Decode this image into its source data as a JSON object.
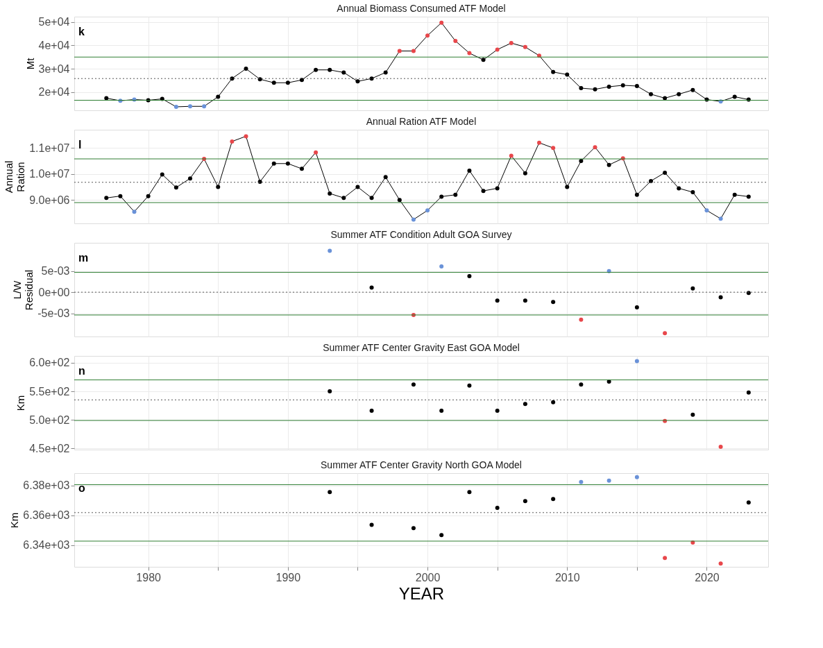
{
  "chart_data": [
    {
      "type": "line",
      "title": "Annual Biomass Consumed ATF Model",
      "ylabel": "Mt",
      "marker": "circle",
      "line_style": "solid",
      "grid": true,
      "tick_labels": "y",
      "annotations": [
        "k"
      ],
      "x": [
        1977,
        1978,
        1979,
        1980,
        1981,
        1982,
        1983,
        1984,
        1985,
        1986,
        1987,
        1988,
        1989,
        1990,
        1991,
        1992,
        1993,
        1994,
        1995,
        1996,
        1997,
        1998,
        1999,
        2000,
        2001,
        2002,
        2003,
        2004,
        2005,
        2006,
        2007,
        2008,
        2009,
        2010,
        2011,
        2012,
        2013,
        2014,
        2015,
        2016,
        2017,
        2018,
        2019,
        2020,
        2021,
        2022,
        2023
      ],
      "series": [
        {
          "color": "#000000",
          "values": [
            17400,
            16300,
            16800,
            16500,
            17100,
            13700,
            13900,
            13900,
            18000,
            25800,
            30000,
            25500,
            24000,
            24000,
            25200,
            29500,
            29500,
            28400,
            24600,
            25800,
            28400,
            37600,
            37600,
            44200,
            49700,
            41900,
            36700,
            33800,
            38200,
            41000,
            39300,
            35600,
            28600,
            27500,
            21700,
            21200,
            22300,
            22900,
            22600,
            19100,
            17400,
            19100,
            20900,
            16800,
            16000,
            18000,
            16800
          ],
          "colors": [
            "#000000",
            "#6a92d8",
            "#6a92d8",
            "#000000",
            "#000000",
            "#6a92d8",
            "#6a92d8",
            "#6a92d8",
            "#000000",
            "#000000",
            "#000000",
            "#000000",
            "#000000",
            "#000000",
            "#000000",
            "#000000",
            "#000000",
            "#000000",
            "#000000",
            "#000000",
            "#000000",
            "#e8474b",
            "#e8474b",
            "#e8474b",
            "#e8474b",
            "#e8474b",
            "#e8474b",
            "#000000",
            "#e8474b",
            "#e8474b",
            "#e8474b",
            "#e8474b",
            "#000000",
            "#000000",
            "#000000",
            "#000000",
            "#000000",
            "#000000",
            "#000000",
            "#000000",
            "#000000",
            "#000000",
            "#000000",
            "#000000",
            "#6a92d8",
            "#000000",
            "#000000"
          ]
        }
      ],
      "xlim": [
        1974.7,
        2024.4
      ],
      "xticks": [
        1980,
        {
          "value": 1985,
          "label": null
        },
        1990,
        {
          "value": 1995,
          "label": null
        },
        2000,
        {
          "value": 2005,
          "label": null
        },
        2010,
        {
          "value": 2015,
          "label": null
        },
        2020
      ],
      "ylim": [
        12200,
        52300
      ],
      "yticks": [
        {
          "value": 20000,
          "label": "2e+04"
        },
        {
          "value": 30000,
          "label": "3e+04"
        },
        {
          "value": 40000,
          "label": "4e+04"
        },
        {
          "value": 50000,
          "label": "5e+04"
        }
      ],
      "ref_lines": [
        {
          "axis": "y",
          "value": 35000,
          "label": null,
          "color": "#2e7d32",
          "line_style": "solid"
        },
        {
          "axis": "y",
          "value": 25800,
          "label": null,
          "color": "#555555",
          "line_style": "dotted"
        },
        {
          "axis": "y",
          "value": 16500,
          "label": null,
          "color": "#2e7d32",
          "line_style": "solid"
        }
      ]
    },
    {
      "type": "line",
      "title": "Annual Ration ATF Model",
      "ylabel": "Annual\nRation",
      "marker": "circle",
      "line_style": "solid",
      "grid": true,
      "tick_labels": "y",
      "annotations": [
        "l"
      ],
      "x": [
        1977,
        1978,
        1979,
        1980,
        1981,
        1982,
        1983,
        1984,
        1985,
        1986,
        1987,
        1988,
        1989,
        1990,
        1991,
        1992,
        1993,
        1994,
        1995,
        1996,
        1997,
        1998,
        1999,
        2000,
        2001,
        2002,
        2003,
        2004,
        2005,
        2006,
        2007,
        2008,
        2009,
        2010,
        2011,
        2012,
        2013,
        2014,
        2015,
        2016,
        2017,
        2018,
        2019,
        2020,
        2021,
        2022,
        2023
      ],
      "series": [
        {
          "color": "#000000",
          "values": [
            9080000,
            9150000,
            8550000,
            9150000,
            9980000,
            9480000,
            9830000,
            10580000,
            9500000,
            11250000,
            11450000,
            9700000,
            10400000,
            10400000,
            10200000,
            10830000,
            9250000,
            9080000,
            9500000,
            9080000,
            9880000,
            9000000,
            8250000,
            8600000,
            9130000,
            9200000,
            10130000,
            9350000,
            9450000,
            10700000,
            10030000,
            11200000,
            11000000,
            9500000,
            10500000,
            11030000,
            10350000,
            10600000,
            9200000,
            9730000,
            10050000,
            9450000,
            9300000,
            8600000,
            8280000,
            9200000,
            9130000
          ],
          "colors": [
            "#000000",
            "#000000",
            "#6a92d8",
            "#000000",
            "#000000",
            "#000000",
            "#000000",
            "#e8474b",
            "#000000",
            "#e8474b",
            "#e8474b",
            "#000000",
            "#000000",
            "#000000",
            "#000000",
            "#e8474b",
            "#000000",
            "#000000",
            "#000000",
            "#000000",
            "#000000",
            "#000000",
            "#6a92d8",
            "#6a92d8",
            "#000000",
            "#000000",
            "#000000",
            "#000000",
            "#000000",
            "#e8474b",
            "#000000",
            "#e8474b",
            "#e8474b",
            "#000000",
            "#000000",
            "#e8474b",
            "#000000",
            "#e8474b",
            "#000000",
            "#000000",
            "#000000",
            "#000000",
            "#000000",
            "#6a92d8",
            "#6a92d8",
            "#000000",
            "#000000"
          ]
        }
      ],
      "xlim": [
        1974.7,
        2024.4
      ],
      "xticks": [
        1980,
        {
          "value": 1985,
          "label": null
        },
        1990,
        {
          "value": 1995,
          "label": null
        },
        2000,
        {
          "value": 2005,
          "label": null
        },
        2010,
        {
          "value": 2015,
          "label": null
        },
        2020
      ],
      "ylim": [
        8100000,
        11700000
      ],
      "yticks": [
        {
          "value": 9000000,
          "label": "9.0e+06"
        },
        {
          "value": 10000000,
          "label": "1.0e+07"
        },
        {
          "value": 11000000,
          "label": "1.1e+07"
        }
      ],
      "ref_lines": [
        {
          "axis": "y",
          "value": 10580000,
          "label": null,
          "color": "#2e7d32",
          "line_style": "solid"
        },
        {
          "axis": "y",
          "value": 9680000,
          "label": null,
          "color": "#555555",
          "line_style": "dotted"
        },
        {
          "axis": "y",
          "value": 8900000,
          "label": null,
          "color": "#2e7d32",
          "line_style": "solid"
        }
      ]
    },
    {
      "type": "scatter",
      "title": "Summer ATF Condition Adult GOA Survey",
      "ylabel": "L/W\nResidual",
      "marker": "circle",
      "grid": true,
      "tick_labels": "y",
      "annotations": [
        "m"
      ],
      "x": [
        1993,
        1996,
        1999,
        2001,
        2003,
        2005,
        2007,
        2009,
        2011,
        2013,
        2015,
        2017,
        2019,
        2021,
        2023
      ],
      "series": [
        {
          "values": [
            0.0098,
            0.0011,
            -0.0054,
            0.0061,
            0.0038,
            -0.002,
            -0.002,
            -0.0023,
            -0.0065,
            0.005,
            -0.0036,
            -0.0097,
            0.0009,
            -0.0012,
            -0.0002
          ],
          "colors": [
            "#6a92d8",
            "#000000",
            "#e8474b",
            "#6a92d8",
            "#000000",
            "#000000",
            "#000000",
            "#000000",
            "#e8474b",
            "#6a92d8",
            "#000000",
            "#e8474b",
            "#000000",
            "#000000",
            "#000000"
          ]
        }
      ],
      "xlim": [
        1974.7,
        2024.4
      ],
      "xticks": [
        1980,
        {
          "value": 1985,
          "label": null
        },
        1990,
        {
          "value": 1995,
          "label": null
        },
        2000,
        {
          "value": 2005,
          "label": null
        },
        2010,
        {
          "value": 2015,
          "label": null
        },
        2020
      ],
      "ylim": [
        -0.0105,
        0.0117
      ],
      "yticks": [
        {
          "value": -0.005,
          "label": "-5e-03"
        },
        {
          "value": 0,
          "label": "0e+00"
        },
        {
          "value": 0.005,
          "label": "5e-03"
        }
      ],
      "ref_lines": [
        {
          "axis": "y",
          "value": 0.0047,
          "label": null,
          "color": "#2e7d32",
          "line_style": "solid"
        },
        {
          "axis": "y",
          "value": 0,
          "label": null,
          "color": "#555555",
          "line_style": "dotted"
        },
        {
          "axis": "y",
          "value": -0.0054,
          "label": null,
          "color": "#2e7d32",
          "line_style": "solid"
        }
      ]
    },
    {
      "type": "scatter",
      "title": "Summer ATF Center Gravity East GOA Model",
      "ylabel": "Km",
      "marker": "circle",
      "grid": true,
      "tick_labels": "y",
      "annotations": [
        "n"
      ],
      "x": [
        1993,
        1996,
        1999,
        2001,
        2003,
        2005,
        2007,
        2009,
        2011,
        2013,
        2015,
        2017,
        2019,
        2021,
        2023
      ],
      "series": [
        {
          "values": [
            550,
            516,
            562,
            516,
            560,
            516,
            528,
            531,
            562,
            567,
            603,
            498,
            509,
            453,
            548
          ],
          "colors": [
            "#000000",
            "#000000",
            "#000000",
            "#000000",
            "#000000",
            "#000000",
            "#000000",
            "#000000",
            "#000000",
            "#000000",
            "#6a92d8",
            "#e8474b",
            "#000000",
            "#e8474b",
            "#000000"
          ]
        }
      ],
      "xlim": [
        1974.7,
        2024.4
      ],
      "xticks": [
        1980,
        {
          "value": 1985,
          "label": null
        },
        1990,
        {
          "value": 1995,
          "label": null
        },
        2000,
        {
          "value": 2005,
          "label": null
        },
        2010,
        {
          "value": 2015,
          "label": null
        },
        2020
      ],
      "ylim": [
        448,
        612
      ],
      "yticks": [
        {
          "value": 450,
          "label": "4.5e+02"
        },
        {
          "value": 500,
          "label": "5.0e+02"
        },
        {
          "value": 550,
          "label": "5.5e+02"
        },
        {
          "value": 600,
          "label": "6.0e+02"
        }
      ],
      "ref_lines": [
        {
          "axis": "y",
          "value": 570,
          "label": null,
          "color": "#2e7d32",
          "line_style": "solid"
        },
        {
          "axis": "y",
          "value": 535,
          "label": null,
          "color": "#555555",
          "line_style": "dotted"
        },
        {
          "axis": "y",
          "value": 499,
          "label": null,
          "color": "#2e7d32",
          "line_style": "solid"
        }
      ]
    },
    {
      "type": "scatter",
      "title": "Summer ATF Center Gravity North GOA Model",
      "ylabel": "Km",
      "xlabel": "YEAR",
      "marker": "circle",
      "grid": true,
      "annotations": [
        "o"
      ],
      "x": [
        1993,
        1996,
        1999,
        2001,
        2003,
        2005,
        2007,
        2009,
        2011,
        2013,
        2015,
        2017,
        2019,
        2021,
        2023
      ],
      "series": [
        {
          "values": [
            6375.5,
            6353.6,
            6351.4,
            6346.8,
            6375.5,
            6365,
            6369.5,
            6370.9,
            6382.3,
            6383.2,
            6385.5,
            6331.4,
            6341.8,
            6327.7,
            6368.6
          ],
          "colors": [
            "#000000",
            "#000000",
            "#000000",
            "#000000",
            "#000000",
            "#000000",
            "#000000",
            "#000000",
            "#6a92d8",
            "#6a92d8",
            "#6a92d8",
            "#e8474b",
            "#e8474b",
            "#e8474b",
            "#000000"
          ]
        }
      ],
      "xlim": [
        1974.7,
        2024.4
      ],
      "xticks": [
        1980,
        {
          "value": 1985,
          "label": null
        },
        1990,
        {
          "value": 1995,
          "label": null
        },
        2000,
        {
          "value": 2005,
          "label": null
        },
        2010,
        {
          "value": 2015,
          "label": null
        },
        2020
      ],
      "ylim": [
        6325.5,
        6388.2
      ],
      "yticks": [
        {
          "value": 6340,
          "label": "6.34e+03"
        },
        {
          "value": 6360,
          "label": "6.36e+03"
        },
        {
          "value": 6380,
          "label": "6.38e+03"
        }
      ],
      "ref_lines": [
        {
          "axis": "y",
          "value": 6380.5,
          "label": null,
          "color": "#2e7d32",
          "line_style": "solid"
        },
        {
          "axis": "y",
          "value": 6361.8,
          "label": null,
          "color": "#555555",
          "line_style": "dotted"
        },
        {
          "axis": "y",
          "value": 6342.7,
          "label": null,
          "color": "#2e7d32",
          "line_style": "solid"
        }
      ]
    }
  ]
}
